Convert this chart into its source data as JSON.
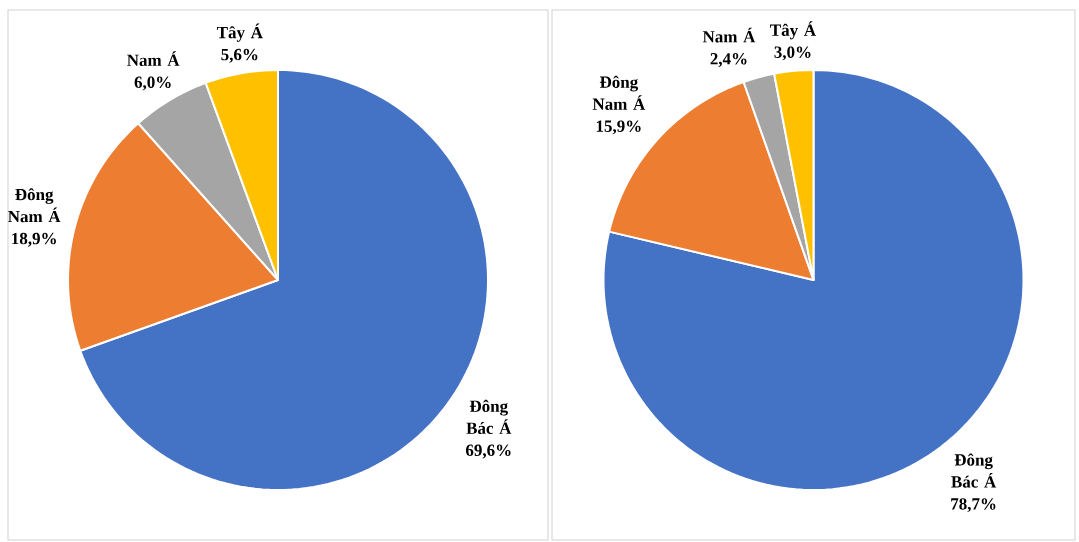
{
  "chart_data": [
    {
      "type": "pie",
      "categories": [
        "Đông Bác Á",
        "Đông Nam Á",
        "Nam Á",
        "Tây Á"
      ],
      "values": [
        69.6,
        18.9,
        6.0,
        5.6
      ],
      "colors": [
        "#4472c4",
        "#ed7d31",
        "#a5a5a5",
        "#ffc000"
      ],
      "value_labels": [
        "69,6%",
        "18,9%",
        "6,0%",
        "5,6%"
      ]
    },
    {
      "type": "pie",
      "categories": [
        "Đông Bác Á",
        "Đông Nam Á",
        "Nam Á",
        "Tây Á"
      ],
      "values": [
        78.7,
        15.9,
        2.4,
        3.0
      ],
      "colors": [
        "#4472c4",
        "#ed7d31",
        "#a5a5a5",
        "#ffc000"
      ],
      "value_labels": [
        "78,7%",
        "15,9%",
        "2,4%",
        "3,0%"
      ]
    }
  ]
}
